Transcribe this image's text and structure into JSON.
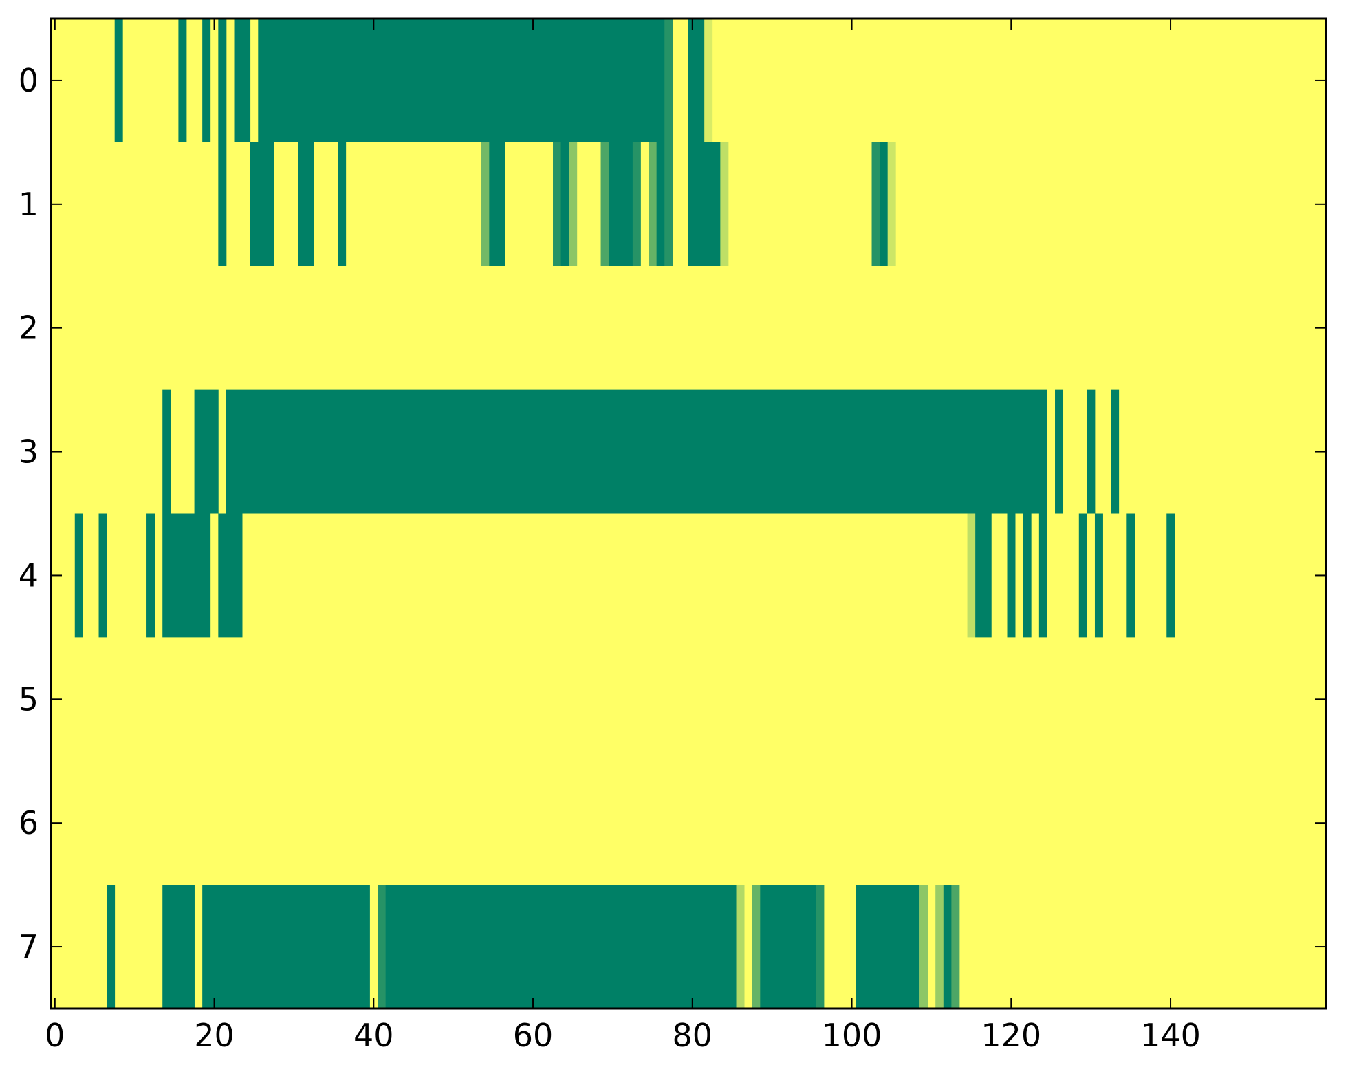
{
  "chart_data": {
    "type": "heatmap",
    "title": "",
    "xlabel": "",
    "ylabel": "",
    "xlim": [
      -0.5,
      159.5
    ],
    "ylim": [
      7.5,
      -0.5
    ],
    "x_ticks": [
      0,
      20,
      40,
      60,
      80,
      100,
      120,
      140
    ],
    "x_tick_labels": [
      "0",
      "20",
      "40",
      "60",
      "80",
      "100",
      "120",
      "140"
    ],
    "y_ticks": [
      0,
      1,
      2,
      3,
      4,
      5,
      6,
      7
    ],
    "y_tick_labels": [
      "0",
      "1",
      "2",
      "3",
      "4",
      "5",
      "6",
      "7"
    ],
    "n_columns": 160,
    "n_rows": 8,
    "colormap": "summer",
    "value_range": [
      0,
      1
    ],
    "colors": {
      "low": "#008066",
      "high": "#ffff66",
      "background": "#ffff66"
    },
    "background_value": 1,
    "rows": [
      {
        "row": 0,
        "segments": [
          {
            "start": 8,
            "end": 8,
            "value": 0
          },
          {
            "start": 16,
            "end": 16,
            "value": 0
          },
          {
            "start": 19,
            "end": 19,
            "value": 0
          },
          {
            "start": 21,
            "end": 21,
            "value": 0
          },
          {
            "start": 23,
            "end": 24,
            "value": 0
          },
          {
            "start": 26,
            "end": 76,
            "value": 0
          },
          {
            "start": 77,
            "end": 77,
            "value": 0.15
          },
          {
            "start": 80,
            "end": 81,
            "value": 0
          },
          {
            "start": 82,
            "end": 82,
            "value": 0.85
          }
        ]
      },
      {
        "row": 1,
        "segments": [
          {
            "start": 21,
            "end": 21,
            "value": 0
          },
          {
            "start": 25,
            "end": 27,
            "value": 0
          },
          {
            "start": 31,
            "end": 32,
            "value": 0
          },
          {
            "start": 36,
            "end": 36,
            "value": 0
          },
          {
            "start": 54,
            "end": 54,
            "value": 0.45
          },
          {
            "start": 55,
            "end": 56,
            "value": 0
          },
          {
            "start": 63,
            "end": 63,
            "value": 0.15
          },
          {
            "start": 64,
            "end": 64,
            "value": 0
          },
          {
            "start": 65,
            "end": 65,
            "value": 0.55
          },
          {
            "start": 69,
            "end": 69,
            "value": 0.3
          },
          {
            "start": 70,
            "end": 72,
            "value": 0
          },
          {
            "start": 73,
            "end": 73,
            "value": 0.15
          },
          {
            "start": 75,
            "end": 75,
            "value": 0.4
          },
          {
            "start": 76,
            "end": 76,
            "value": 0
          },
          {
            "start": 77,
            "end": 77,
            "value": 0.15
          },
          {
            "start": 80,
            "end": 83,
            "value": 0
          },
          {
            "start": 84,
            "end": 84,
            "value": 0.75
          },
          {
            "start": 103,
            "end": 103,
            "value": 0.15
          },
          {
            "start": 104,
            "end": 104,
            "value": 0
          },
          {
            "start": 105,
            "end": 105,
            "value": 0.8
          }
        ]
      },
      {
        "row": 2,
        "segments": []
      },
      {
        "row": 3,
        "segments": [
          {
            "start": 14,
            "end": 14,
            "value": 0
          },
          {
            "start": 18,
            "end": 20,
            "value": 0
          },
          {
            "start": 22,
            "end": 124,
            "value": 0
          },
          {
            "start": 126,
            "end": 126,
            "value": 0
          },
          {
            "start": 130,
            "end": 130,
            "value": 0
          },
          {
            "start": 133,
            "end": 133,
            "value": 0
          }
        ]
      },
      {
        "row": 4,
        "segments": [
          {
            "start": 3,
            "end": 3,
            "value": 0
          },
          {
            "start": 6,
            "end": 6,
            "value": 0
          },
          {
            "start": 12,
            "end": 12,
            "value": 0
          },
          {
            "start": 14,
            "end": 19,
            "value": 0
          },
          {
            "start": 21,
            "end": 23,
            "value": 0
          },
          {
            "start": 115,
            "end": 115,
            "value": 0.75
          },
          {
            "start": 116,
            "end": 117,
            "value": 0
          },
          {
            "start": 120,
            "end": 120,
            "value": 0
          },
          {
            "start": 122,
            "end": 122,
            "value": 0
          },
          {
            "start": 124,
            "end": 124,
            "value": 0
          },
          {
            "start": 129,
            "end": 129,
            "value": 0
          },
          {
            "start": 131,
            "end": 131,
            "value": 0
          },
          {
            "start": 135,
            "end": 135,
            "value": 0
          },
          {
            "start": 140,
            "end": 140,
            "value": 0
          }
        ]
      },
      {
        "row": 5,
        "segments": []
      },
      {
        "row": 6,
        "segments": []
      },
      {
        "row": 7,
        "segments": [
          {
            "start": 7,
            "end": 7,
            "value": 0
          },
          {
            "start": 14,
            "end": 17,
            "value": 0
          },
          {
            "start": 19,
            "end": 39,
            "value": 0
          },
          {
            "start": 41,
            "end": 41,
            "value": 0.15
          },
          {
            "start": 42,
            "end": 85,
            "value": 0
          },
          {
            "start": 86,
            "end": 86,
            "value": 0.7
          },
          {
            "start": 88,
            "end": 88,
            "value": 0.4
          },
          {
            "start": 89,
            "end": 95,
            "value": 0
          },
          {
            "start": 96,
            "end": 96,
            "value": 0.15
          },
          {
            "start": 101,
            "end": 108,
            "value": 0
          },
          {
            "start": 109,
            "end": 109,
            "value": 0.55
          },
          {
            "start": 111,
            "end": 111,
            "value": 0.6
          },
          {
            "start": 112,
            "end": 112,
            "value": 0
          },
          {
            "start": 113,
            "end": 113,
            "value": 0.3
          }
        ]
      }
    ]
  }
}
